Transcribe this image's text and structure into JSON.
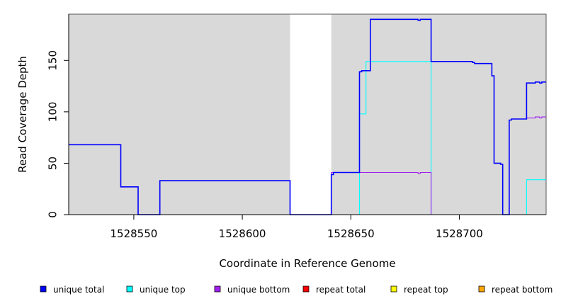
{
  "chart_data": {
    "type": "line",
    "xlabel": "Coordinate in Reference Genome",
    "ylabel": "Read Coverage Depth",
    "xlim": [
      1528520,
      1528740
    ],
    "ylim": [
      0,
      195
    ],
    "x_ticks": [
      1528550,
      1528600,
      1528650,
      1528700
    ],
    "x_tick_labels": [
      "1528550",
      "1528600",
      "1528650",
      "1528700"
    ],
    "y_ticks": [
      0,
      50,
      100,
      150
    ],
    "y_tick_labels": [
      "0",
      "50",
      "100",
      "150"
    ],
    "shaded_regions": [
      [
        1528520,
        1528622
      ],
      [
        1528641,
        1528740
      ]
    ],
    "grid": false,
    "legend_position": "bottom",
    "series": [
      {
        "name": "unique total",
        "color": "#0000ff",
        "x": [
          1528520,
          1528544,
          1528544,
          1528552,
          1528552,
          1528562,
          1528562,
          1528622,
          1528622,
          1528641,
          1528641,
          1528642,
          1528642,
          1528654,
          1528654,
          1528655,
          1528655,
          1528659,
          1528659,
          1528681,
          1528681,
          1528682,
          1528682,
          1528687,
          1528687,
          1528706,
          1528706,
          1528707,
          1528707,
          1528715,
          1528715,
          1528716,
          1528716,
          1528719,
          1528719,
          1528720,
          1528720,
          1528723,
          1528723,
          1528724,
          1528724,
          1528731,
          1528731,
          1528735,
          1528735,
          1528737,
          1528737,
          1528738,
          1528738,
          1528740
        ],
        "y": [
          68,
          68,
          27,
          27,
          0,
          0,
          33,
          33,
          0,
          0,
          39,
          39,
          41,
          41,
          139,
          139,
          140,
          140,
          190,
          190,
          189,
          189,
          190,
          190,
          149,
          149,
          148,
          148,
          147,
          147,
          135,
          135,
          50,
          50,
          49,
          49,
          0,
          0,
          92,
          92,
          93,
          93,
          128,
          128,
          129,
          129,
          128,
          128,
          129,
          129
        ]
      },
      {
        "name": "unique top",
        "color": "#00ffff",
        "x": [
          1528520,
          1528552,
          1528552,
          1528654,
          1528654,
          1528657,
          1528657,
          1528687,
          1528687,
          1528731,
          1528731,
          1528740
        ],
        "y": [
          0,
          0,
          0,
          0,
          98,
          98,
          149,
          149,
          0,
          0,
          34,
          34
        ]
      },
      {
        "name": "unique bottom",
        "color": "#a020f0",
        "x": [
          1528520,
          1528544,
          1528544,
          1528552,
          1528552,
          1528562,
          1528562,
          1528622,
          1528622,
          1528641,
          1528641,
          1528681,
          1528681,
          1528682,
          1528682,
          1528687,
          1528687,
          1528723,
          1528723,
          1528724,
          1528724,
          1528731,
          1528731,
          1528735,
          1528735,
          1528737,
          1528737,
          1528738,
          1528738,
          1528740
        ],
        "y": [
          68,
          68,
          27,
          27,
          0,
          0,
          33,
          33,
          0,
          0,
          41,
          41,
          40,
          40,
          41,
          41,
          0,
          0,
          92,
          92,
          93,
          93,
          94,
          94,
          95,
          95,
          94,
          94,
          95,
          95
        ]
      },
      {
        "name": "repeat total",
        "color": "#ff0000",
        "x": [
          1528520,
          1528740
        ],
        "y": [
          0,
          0
        ]
      },
      {
        "name": "repeat top",
        "color": "#ffff00",
        "x": [
          1528520,
          1528740
        ],
        "y": [
          0,
          0
        ]
      },
      {
        "name": "repeat bottom",
        "color": "#ffa500",
        "x": [
          1528520,
          1528740
        ],
        "y": [
          0,
          0
        ]
      }
    ]
  }
}
